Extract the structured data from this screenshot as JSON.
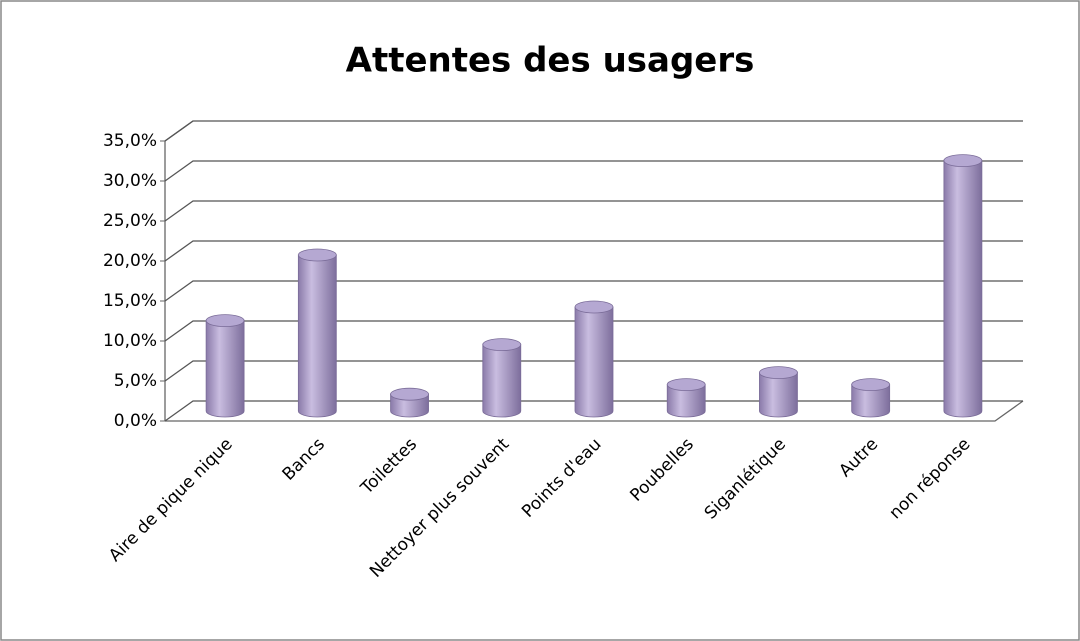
{
  "chart_data": {
    "type": "bar",
    "title": "Attentes des usagers",
    "categories": [
      "Aire de pique nique",
      "Bancs",
      "Toilettes",
      "Nettoyer plus souvent",
      "Points d'eau",
      "Poubelles",
      "Siganlétique",
      "Autre",
      "non réponse"
    ],
    "values": [
      11.3,
      19.5,
      2.1,
      8.3,
      13.0,
      3.3,
      4.8,
      3.3,
      31.3
    ],
    "color": "#a99bc6",
    "ylim": [
      0,
      35
    ],
    "yticks": [
      {
        "value": 0,
        "label": "0,0%"
      },
      {
        "value": 5,
        "label": "5,0%"
      },
      {
        "value": 10,
        "label": "10,0%"
      },
      {
        "value": 15,
        "label": "15,0%"
      },
      {
        "value": 20,
        "label": "20,0%"
      },
      {
        "value": 25,
        "label": "25,0%"
      },
      {
        "value": 30,
        "label": "30,0%"
      },
      {
        "value": 35,
        "label": "35,0%"
      }
    ],
    "grid": true
  }
}
